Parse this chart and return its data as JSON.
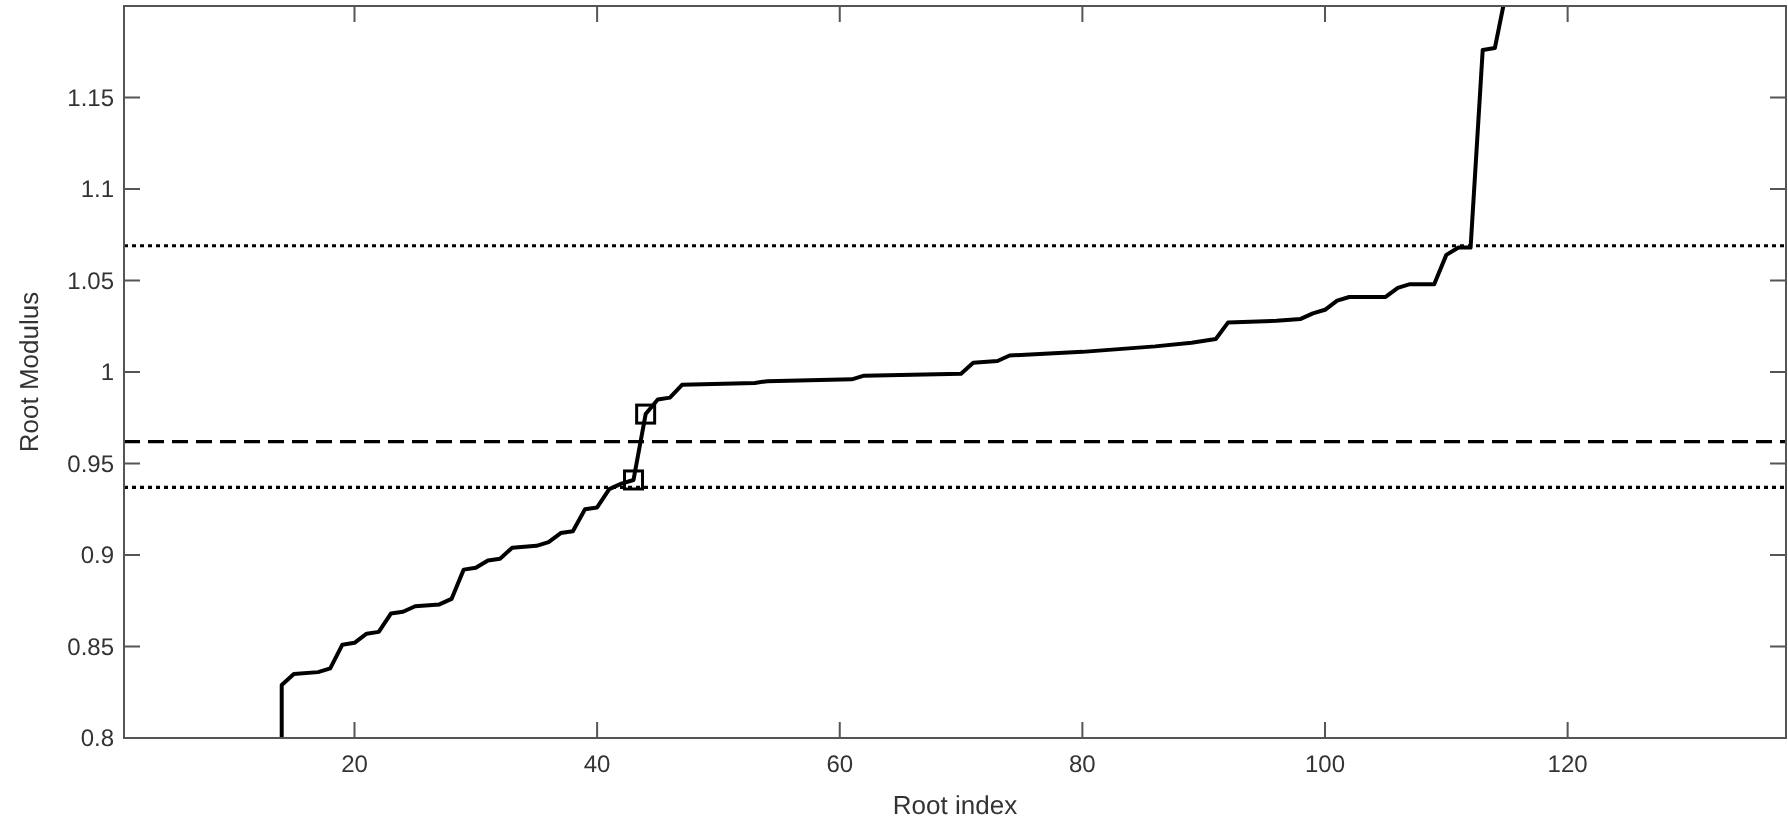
{
  "chart_data": {
    "type": "line",
    "xlabel": "Root index",
    "ylabel": "Root Modulus",
    "xlim": [
      1,
      138
    ],
    "ylim": [
      0.8,
      1.2
    ],
    "xticks": [
      20,
      40,
      60,
      80,
      100,
      120
    ],
    "yticks": [
      0.8,
      0.85,
      0.9,
      0.95,
      1,
      1.05,
      1.1,
      1.15
    ],
    "grid": false,
    "line_style": "solid",
    "series": [
      {
        "color": "#000000",
        "marker": "none",
        "x": [
          14,
          14,
          15,
          17,
          18,
          19,
          20,
          21,
          22,
          23,
          24,
          25,
          27,
          28,
          29,
          30,
          31,
          32,
          33,
          35,
          36,
          37,
          38,
          39,
          40,
          41,
          42,
          43,
          44,
          45,
          46,
          47,
          53,
          54,
          61,
          62,
          70,
          71,
          73,
          74,
          80,
          86,
          89,
          91,
          92,
          96,
          98,
          99,
          100,
          101,
          102,
          105,
          106,
          107,
          109,
          110,
          111,
          112,
          113,
          114,
          114.7
        ],
        "values": [
          0.8,
          0.829,
          0.835,
          0.836,
          0.838,
          0.851,
          0.852,
          0.857,
          0.858,
          0.868,
          0.869,
          0.872,
          0.873,
          0.876,
          0.892,
          0.893,
          0.897,
          0.898,
          0.904,
          0.905,
          0.907,
          0.912,
          0.913,
          0.925,
          0.926,
          0.936,
          0.939,
          0.941,
          0.977,
          0.985,
          0.986,
          0.993,
          0.994,
          0.995,
          0.996,
          0.998,
          0.999,
          1.005,
          1.006,
          1.009,
          1.011,
          1.014,
          1.016,
          1.018,
          1.027,
          1.028,
          1.029,
          1.032,
          1.034,
          1.039,
          1.041,
          1.041,
          1.046,
          1.048,
          1.048,
          1.064,
          1.068,
          1.068,
          1.176,
          1.177,
          1.2
        ]
      },
      {
        "type": "scatter",
        "color": "#000000",
        "marker": "square",
        "x": [
          43,
          44
        ],
        "values": [
          0.941,
          0.977
        ]
      }
    ],
    "ref_lines": [
      {
        "axis": "y",
        "value": 1.069,
        "line_style": "dotted",
        "color": "#000000"
      },
      {
        "axis": "y",
        "value": 0.962,
        "line_style": "dashed",
        "color": "#000000"
      },
      {
        "axis": "y",
        "value": 0.937,
        "line_style": "dotted",
        "color": "#000000"
      }
    ]
  }
}
